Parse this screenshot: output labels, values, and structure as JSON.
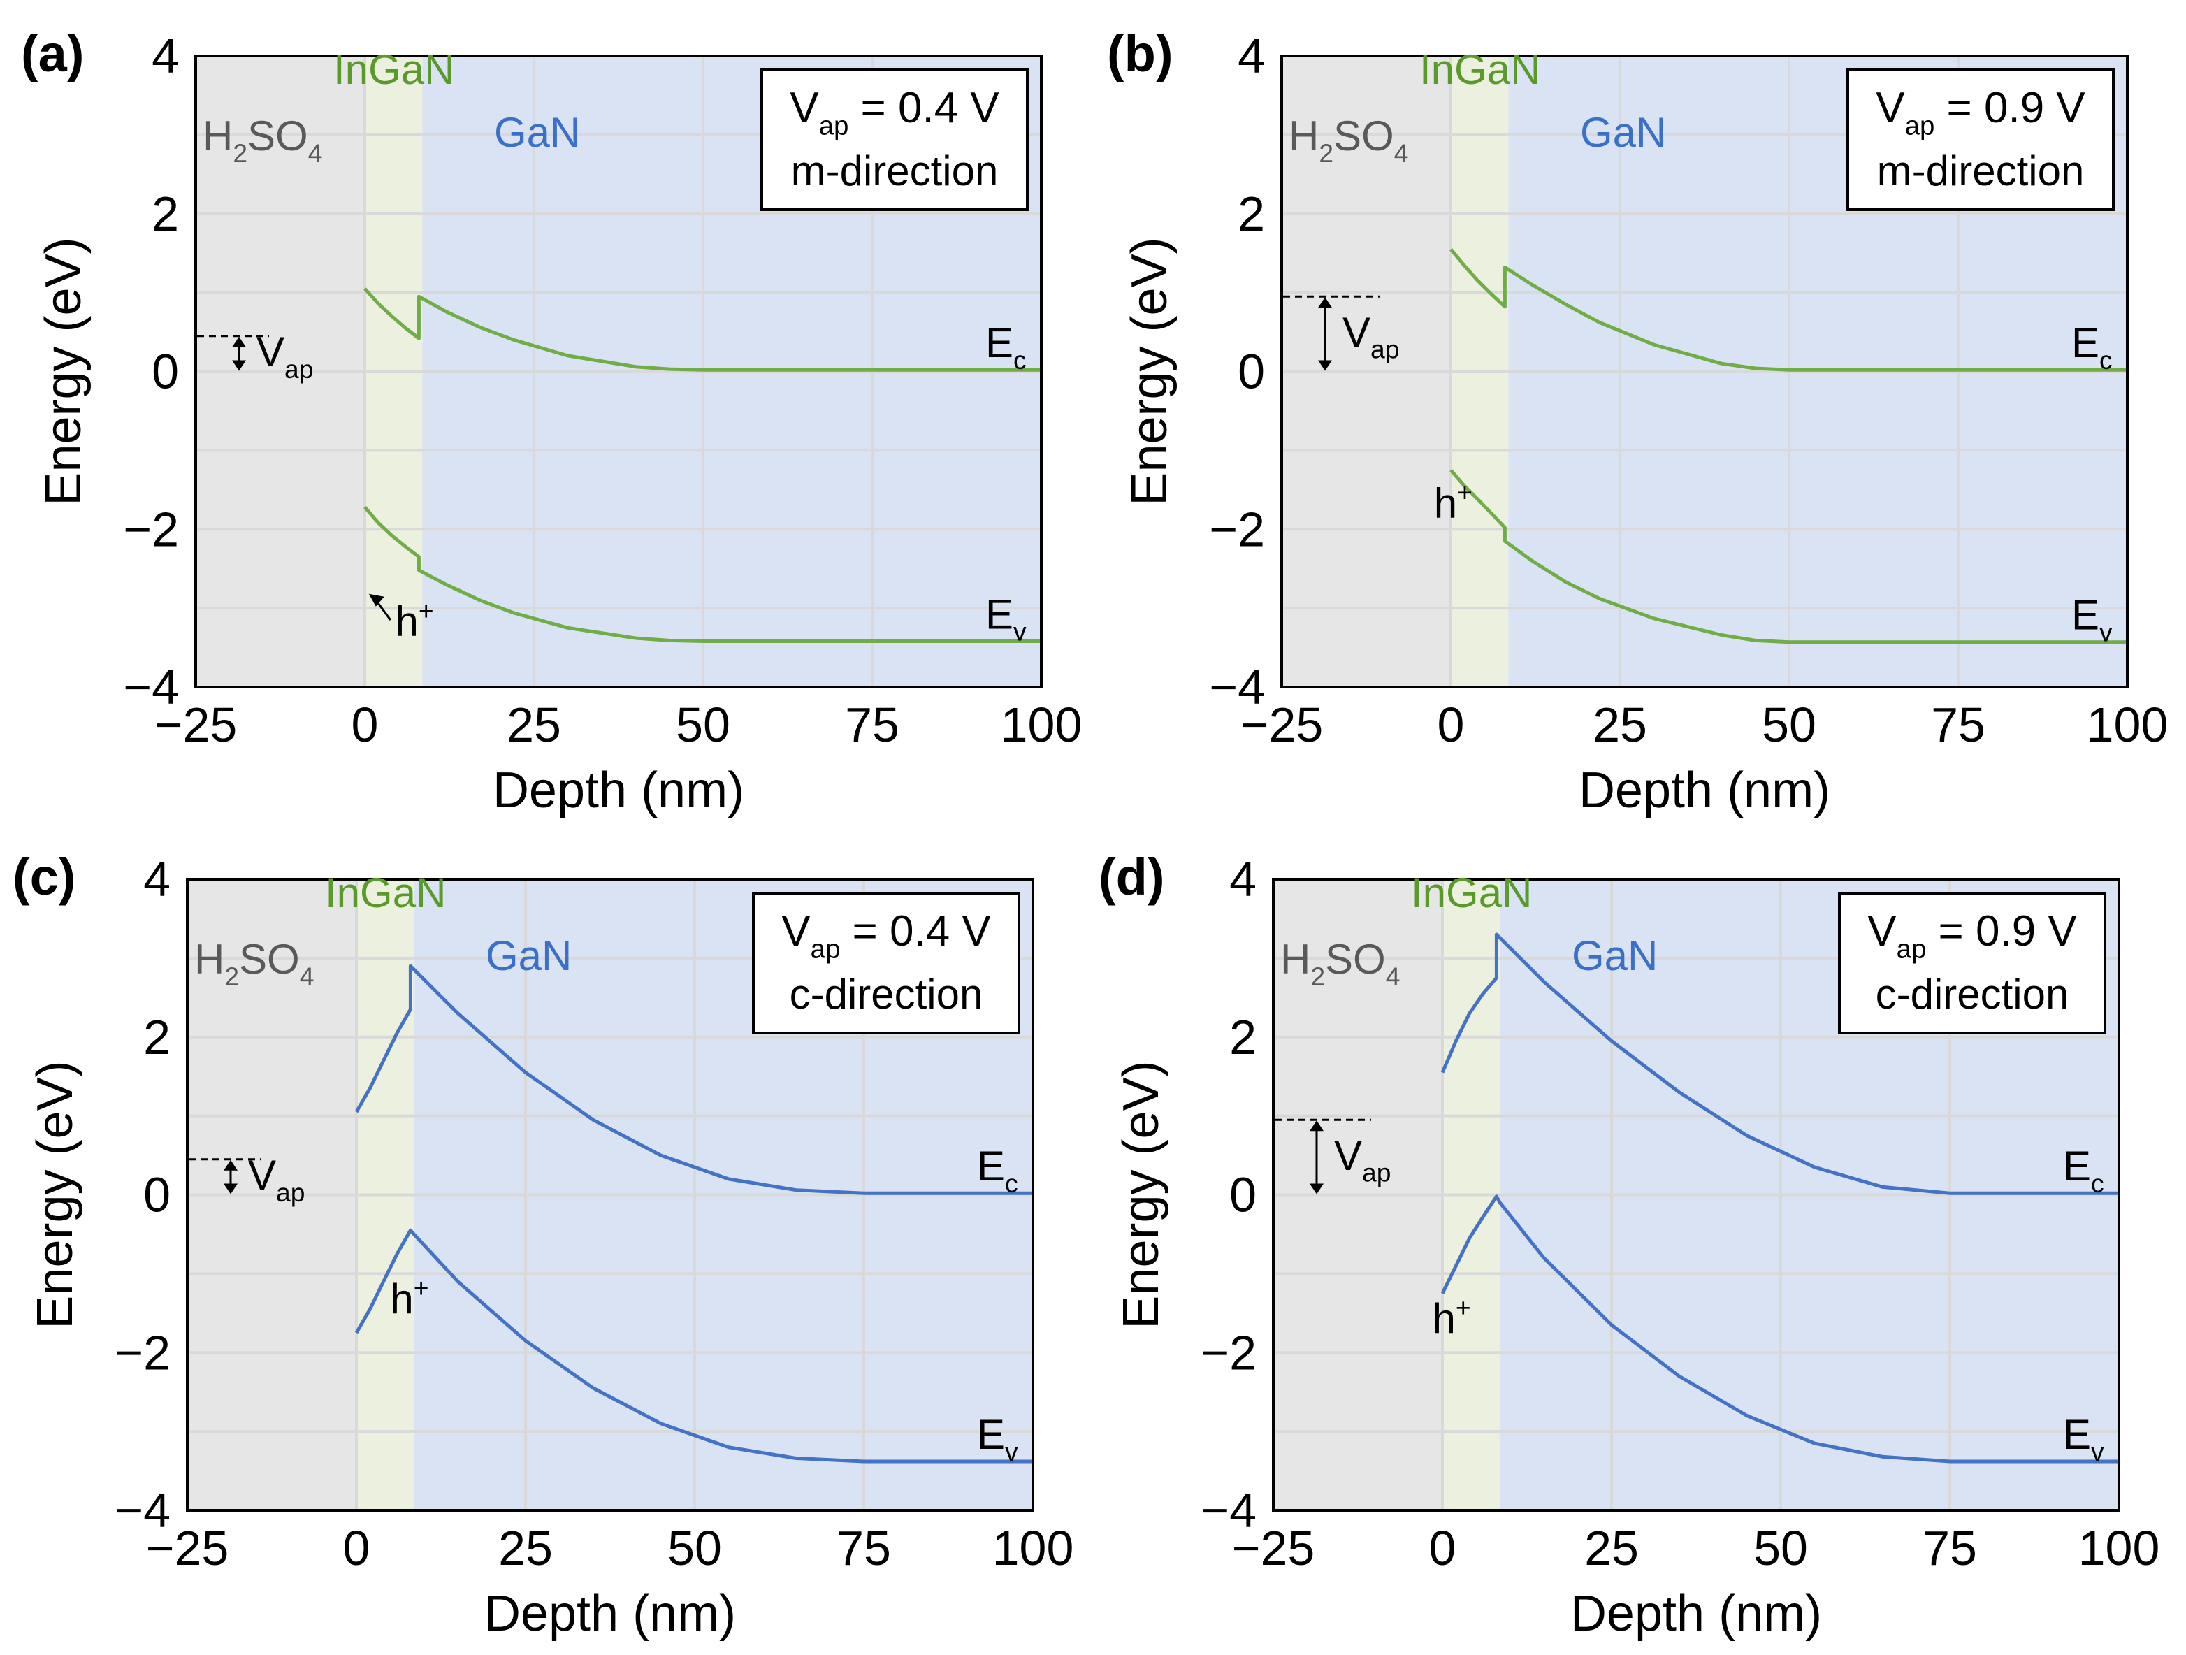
{
  "chart_data": [
    {
      "panel": "(a)",
      "type": "line",
      "xlabel": "Depth (nm)",
      "ylabel": "Energy (eV)",
      "xlim": [
        -25,
        100
      ],
      "ylim": [
        -4,
        4
      ],
      "xticks": [
        "−25",
        "0",
        "25",
        "50",
        "75",
        "100"
      ],
      "yticks": [
        "4",
        "2",
        "0",
        "−2",
        "−4"
      ],
      "regions": {
        "electrolyte": "H",
        "electrolyte_sub1": "2",
        "electrolyte_mid": "SO",
        "electrolyte_sub2": "4",
        "well": "InGaN",
        "bulk": "GaN"
      },
      "box": {
        "v_main": "V",
        "v_sub": "ap",
        "v_rest": " = 0.4 V",
        "direction": "m-direction"
      },
      "vap_label": {
        "main": "V",
        "sub": "ap"
      },
      "vap_level": 0.45,
      "hole": {
        "main": "h",
        "sup": "+"
      },
      "ec_label": {
        "main": "E",
        "sub": "c"
      },
      "ev_label": {
        "main": "E",
        "sub": "v"
      },
      "line_color": "#70ad47",
      "series": [
        {
          "name": "Ec",
          "x": [
            0,
            2,
            4,
            6,
            8,
            8,
            12,
            17,
            22,
            30,
            40,
            45,
            50,
            60,
            75,
            100
          ],
          "y": [
            1.05,
            0.86,
            0.7,
            0.55,
            0.42,
            0.95,
            0.76,
            0.56,
            0.4,
            0.2,
            0.06,
            0.03,
            0.02,
            0.02,
            0.02,
            0.02
          ]
        },
        {
          "name": "Ev",
          "x": [
            0,
            2,
            4,
            6,
            8,
            8,
            12,
            17,
            22,
            30,
            40,
            45,
            50,
            60,
            75,
            100
          ],
          "y": [
            -1.72,
            -1.92,
            -2.08,
            -2.22,
            -2.35,
            -2.52,
            -2.7,
            -2.9,
            -3.06,
            -3.25,
            -3.38,
            -3.41,
            -3.42,
            -3.42,
            -3.42,
            -3.42
          ]
        }
      ]
    },
    {
      "panel": "(b)",
      "type": "line",
      "xlabel": "Depth (nm)",
      "ylabel": "Energy (eV)",
      "xlim": [
        -25,
        100
      ],
      "ylim": [
        -4,
        4
      ],
      "xticks": [
        "−25",
        "0",
        "25",
        "50",
        "75",
        "100"
      ],
      "yticks": [
        "4",
        "2",
        "0",
        "−2",
        "−4"
      ],
      "regions": {
        "electrolyte": "H",
        "electrolyte_sub1": "2",
        "electrolyte_mid": "SO",
        "electrolyte_sub2": "4",
        "well": "InGaN",
        "bulk": "GaN"
      },
      "box": {
        "v_main": "V",
        "v_sub": "ap",
        "v_rest": " = 0.9 V",
        "direction": "m-direction"
      },
      "vap_label": {
        "main": "V",
        "sub": "ap"
      },
      "vap_level": 0.95,
      "hole": {
        "main": "h",
        "sup": "+"
      },
      "ec_label": {
        "main": "E",
        "sub": "c"
      },
      "ev_label": {
        "main": "E",
        "sub": "v"
      },
      "line_color": "#70ad47",
      "series": [
        {
          "name": "Ec",
          "x": [
            0,
            2,
            4,
            6,
            8,
            8,
            12,
            17,
            22,
            30,
            40,
            45,
            50,
            60,
            75,
            100
          ],
          "y": [
            1.55,
            1.34,
            1.15,
            0.98,
            0.82,
            1.32,
            1.1,
            0.85,
            0.62,
            0.34,
            0.1,
            0.04,
            0.02,
            0.02,
            0.02,
            0.02
          ]
        },
        {
          "name": "Ev",
          "x": [
            0,
            2,
            4,
            6,
            8,
            8,
            12,
            17,
            22,
            30,
            40,
            45,
            50,
            60,
            75,
            100
          ],
          "y": [
            -1.25,
            -1.45,
            -1.62,
            -1.8,
            -1.98,
            -2.15,
            -2.4,
            -2.67,
            -2.88,
            -3.13,
            -3.34,
            -3.41,
            -3.43,
            -3.43,
            -3.43,
            -3.43
          ]
        }
      ]
    },
    {
      "panel": "(c)",
      "type": "line",
      "xlabel": "Depth (nm)",
      "ylabel": "Energy (eV)",
      "xlim": [
        -25,
        100
      ],
      "ylim": [
        -4,
        4
      ],
      "xticks": [
        "−25",
        "0",
        "25",
        "50",
        "75",
        "100"
      ],
      "yticks": [
        "4",
        "2",
        "0",
        "−2",
        "−4"
      ],
      "regions": {
        "electrolyte": "H",
        "electrolyte_sub1": "2",
        "electrolyte_mid": "SO",
        "electrolyte_sub2": "4",
        "well": "InGaN",
        "bulk": "GaN"
      },
      "box": {
        "v_main": "V",
        "v_sub": "ap",
        "v_rest": " = 0.4 V",
        "direction": "c-direction"
      },
      "vap_label": {
        "main": "V",
        "sub": "ap"
      },
      "vap_level": 0.45,
      "hole": {
        "main": "h",
        "sup": "+"
      },
      "ec_label": {
        "main": "E",
        "sub": "c"
      },
      "ev_label": {
        "main": "E",
        "sub": "v"
      },
      "line_color": "#4472c4",
      "series": [
        {
          "name": "Ec",
          "x": [
            0,
            2,
            4,
            6,
            8,
            8,
            15,
            25,
            35,
            45,
            55,
            65,
            75,
            85,
            100
          ],
          "y": [
            1.05,
            1.35,
            1.7,
            2.05,
            2.35,
            2.9,
            2.3,
            1.55,
            0.95,
            0.5,
            0.2,
            0.06,
            0.02,
            0.02,
            0.02
          ]
        },
        {
          "name": "Ev",
          "x": [
            0,
            2,
            4,
            6,
            8,
            8.5,
            15,
            25,
            35,
            45,
            55,
            65,
            75,
            85,
            100
          ],
          "y": [
            -1.75,
            -1.45,
            -1.1,
            -0.75,
            -0.45,
            -0.5,
            -1.1,
            -1.85,
            -2.45,
            -2.9,
            -3.2,
            -3.34,
            -3.38,
            -3.38,
            -3.38
          ]
        }
      ]
    },
    {
      "panel": "(d)",
      "type": "line",
      "xlabel": "Depth (nm)",
      "ylabel": "Energy (eV)",
      "xlim": [
        -25,
        100
      ],
      "ylim": [
        -4,
        4
      ],
      "xticks": [
        "−25",
        "0",
        "25",
        "50",
        "75",
        "100"
      ],
      "yticks": [
        "4",
        "2",
        "0",
        "−2",
        "−4"
      ],
      "regions": {
        "electrolyte": "H",
        "electrolyte_sub1": "2",
        "electrolyte_mid": "SO",
        "electrolyte_sub2": "4",
        "well": "InGaN",
        "bulk": "GaN"
      },
      "box": {
        "v_main": "V",
        "v_sub": "ap",
        "v_rest": " = 0.9 V",
        "direction": "c-direction"
      },
      "vap_label": {
        "main": "V",
        "sub": "ap"
      },
      "vap_level": 0.95,
      "hole": {
        "main": "h",
        "sup": "+"
      },
      "ec_label": {
        "main": "E",
        "sub": "c"
      },
      "ev_label": {
        "main": "E",
        "sub": "v"
      },
      "line_color": "#4472c4",
      "series": [
        {
          "name": "Ec",
          "x": [
            0,
            2,
            4,
            6,
            8,
            8,
            15,
            25,
            35,
            45,
            55,
            65,
            75,
            85,
            100
          ],
          "y": [
            1.55,
            1.95,
            2.3,
            2.55,
            2.75,
            3.3,
            2.7,
            1.95,
            1.3,
            0.75,
            0.35,
            0.1,
            0.02,
            0.02,
            0.02
          ]
        },
        {
          "name": "Ev",
          "x": [
            0,
            2,
            4,
            6,
            8,
            8.5,
            15,
            25,
            35,
            45,
            55,
            65,
            75,
            85,
            100
          ],
          "y": [
            -1.25,
            -0.9,
            -0.55,
            -0.28,
            -0.02,
            -0.1,
            -0.8,
            -1.65,
            -2.3,
            -2.8,
            -3.15,
            -3.32,
            -3.38,
            -3.38,
            -3.38
          ]
        }
      ]
    }
  ]
}
